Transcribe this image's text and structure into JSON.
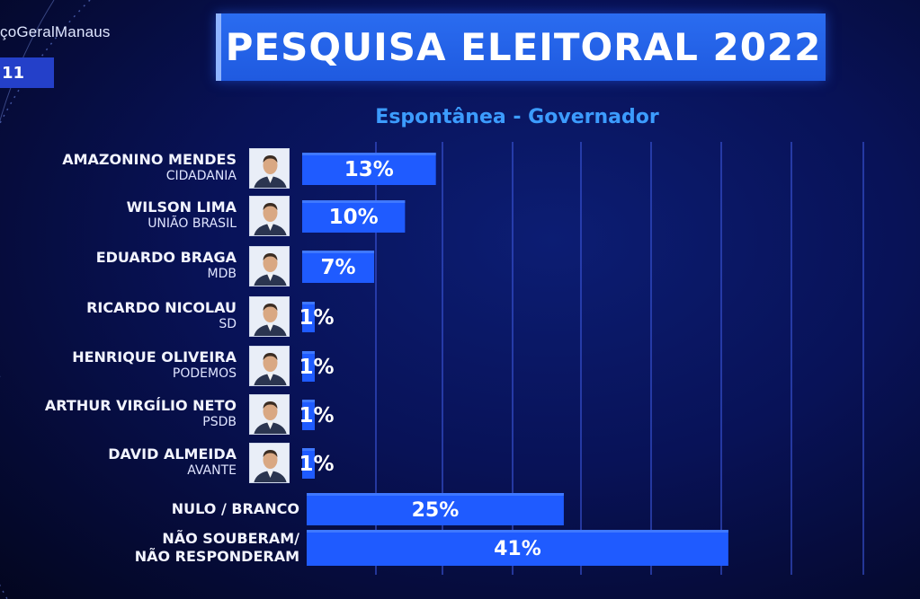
{
  "broadcast": {
    "hashtag": "çoGeralManaus",
    "corner_badge": "11"
  },
  "header": {
    "title": "PESQUISA ELEITORAL 2022",
    "subtitle": "Espontânea - Governador"
  },
  "colors": {
    "bar": "#1f5bff",
    "bar_highlight": "#3f78ff",
    "grid": "#3a54d6",
    "subtitle": "#3c9cff"
  },
  "candidates": [
    {
      "name": "AMAZONINO MENDES",
      "party": "CIDADANIA",
      "photo_icon": "portrait-icon"
    },
    {
      "name": "WILSON LIMA",
      "party": "UNIÃO BRASIL",
      "photo_icon": "portrait-icon"
    },
    {
      "name": "EDUARDO BRAGA",
      "party": "MDB",
      "photo_icon": "portrait-icon"
    },
    {
      "name": "RICARDO NICOLAU",
      "party": "SD",
      "photo_icon": "portrait-icon"
    },
    {
      "name": "HENRIQUE OLIVEIRA",
      "party": "PODEMOS",
      "photo_icon": "portrait-icon"
    },
    {
      "name": "ARTHUR VIRGÍLIO NETO",
      "party": "PSDB",
      "photo_icon": "portrait-icon"
    },
    {
      "name": "DAVID ALMEIDA",
      "party": "AVANTE",
      "photo_icon": "portrait-icon"
    }
  ],
  "extra_rows": [
    {
      "label_line1": "NULO / BRANCO",
      "label_line2": ""
    },
    {
      "label_line1": "NÃO SOUBERAM/",
      "label_line2": "NÃO RESPONDERAM"
    }
  ],
  "chart_data": {
    "type": "bar",
    "orientation": "horizontal",
    "title": "PESQUISA ELEITORAL 2022",
    "subtitle": "Espontânea - Governador",
    "categories": [
      "AMAZONINO MENDES",
      "WILSON LIMA",
      "EDUARDO BRAGA",
      "RICARDO NICOLAU",
      "HENRIQUE OLIVEIRA",
      "ARTHUR VIRGÍLIO NETO",
      "DAVID ALMEIDA",
      "NULO / BRANCO",
      "NÃO SOUBERAM/ NÃO RESPONDERAM"
    ],
    "values": [
      13,
      10,
      7,
      1,
      1,
      1,
      1,
      25,
      41
    ],
    "value_labels": [
      "13%",
      "10%",
      "7%",
      "1%",
      "1%",
      "1%",
      "1%",
      "25%",
      "41%"
    ],
    "unit": "%",
    "xlim": [
      0,
      55
    ],
    "grid": true
  }
}
